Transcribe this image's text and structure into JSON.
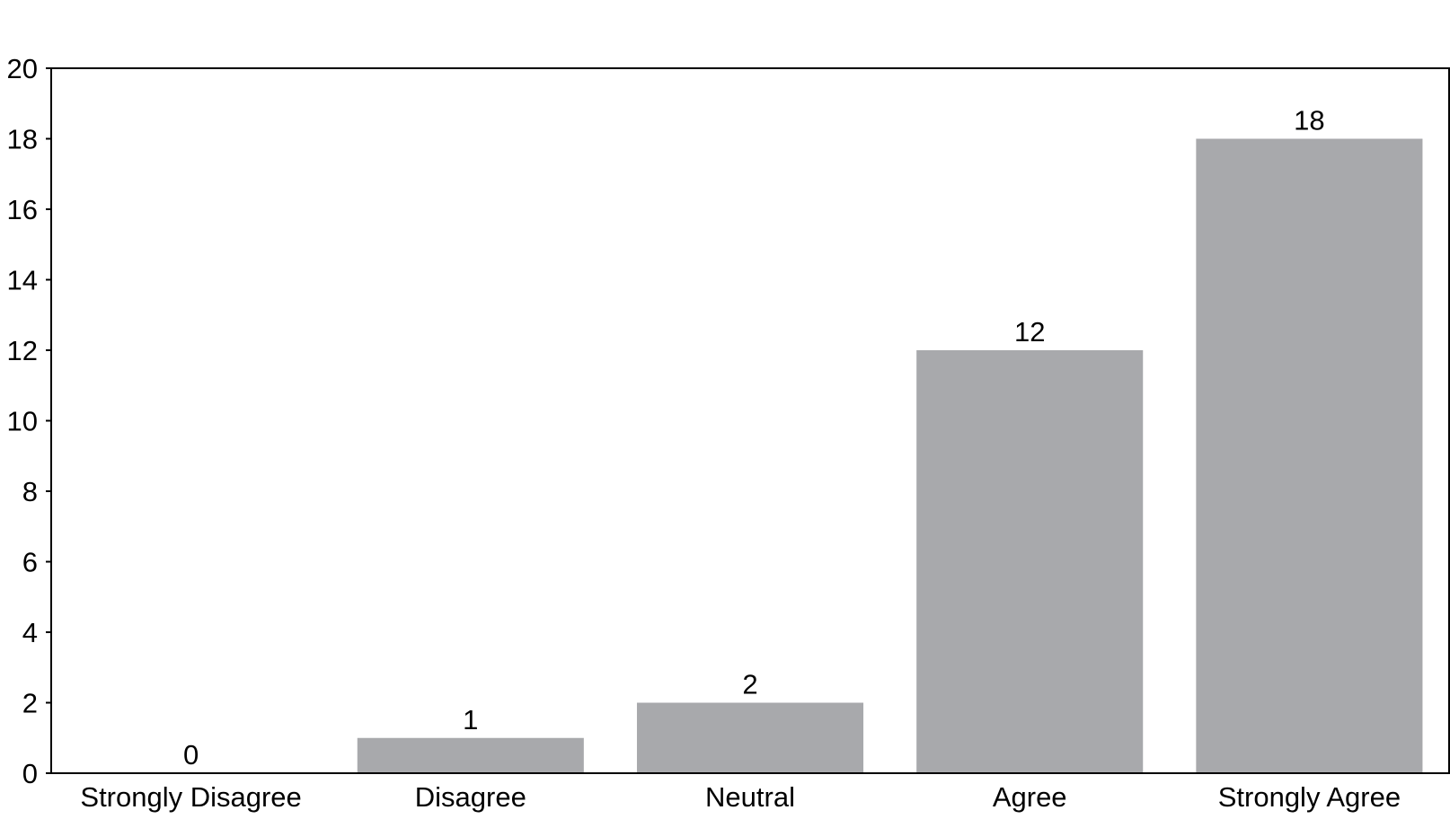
{
  "chart_data": {
    "type": "bar",
    "title": "",
    "xlabel": "",
    "ylabel": "",
    "categories": [
      "Strongly Disagree",
      "Disagree",
      "Neutral",
      "Agree",
      "Strongly Agree"
    ],
    "values": [
      0,
      1,
      2,
      12,
      18
    ],
    "data_labels": [
      "0",
      "1",
      "2",
      "12",
      "18"
    ],
    "ylim": [
      0,
      20
    ],
    "yticks": [
      0,
      2,
      4,
      6,
      8,
      10,
      12,
      14,
      16,
      18,
      20
    ],
    "ytick_labels": [
      "0",
      "2",
      "4",
      "6",
      "8",
      "10",
      "12",
      "14",
      "16",
      "18",
      "20"
    ],
    "grid": false,
    "legend": "none",
    "bar_color": "#a8a9ac",
    "axis_color": "#000000"
  }
}
